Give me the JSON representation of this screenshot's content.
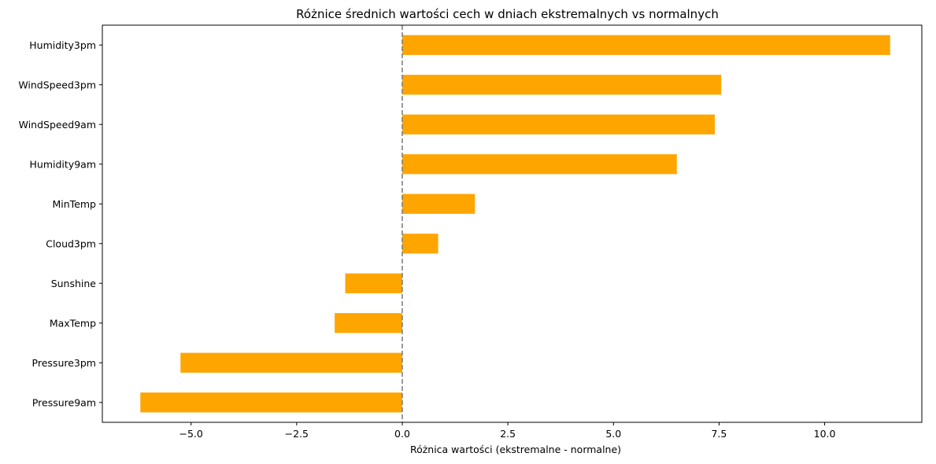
{
  "chart_data": {
    "type": "bar",
    "orientation": "horizontal",
    "title": "Różnice średnich wartości cech w dniach ekstremalnych vs normalnych",
    "xlabel": "Różnica wartości (ekstremalne - normalne)",
    "ylabel": "",
    "categories": [
      "Humidity3pm",
      "WindSpeed3pm",
      "WindSpeed9am",
      "Humidity9am",
      "MinTemp",
      "Cloud3pm",
      "Sunshine",
      "MaxTemp",
      "Pressure3pm",
      "Pressure9am"
    ],
    "values": [
      11.55,
      7.55,
      7.4,
      6.5,
      1.72,
      0.85,
      -1.35,
      -1.6,
      -5.25,
      -6.2
    ],
    "xlim": [
      -7.1,
      12.3
    ],
    "xticks": [
      -5.0,
      -2.5,
      0.0,
      2.5,
      5.0,
      7.5,
      10.0
    ],
    "xtick_labels": [
      "−5.0",
      "−2.5",
      "0.0",
      "2.5",
      "5.0",
      "7.5",
      "10.0"
    ],
    "reference_line": {
      "x": 0,
      "style": "dashed",
      "color": "#808080"
    },
    "bar_color": "#ffa500",
    "grid": false,
    "legend": "none"
  }
}
